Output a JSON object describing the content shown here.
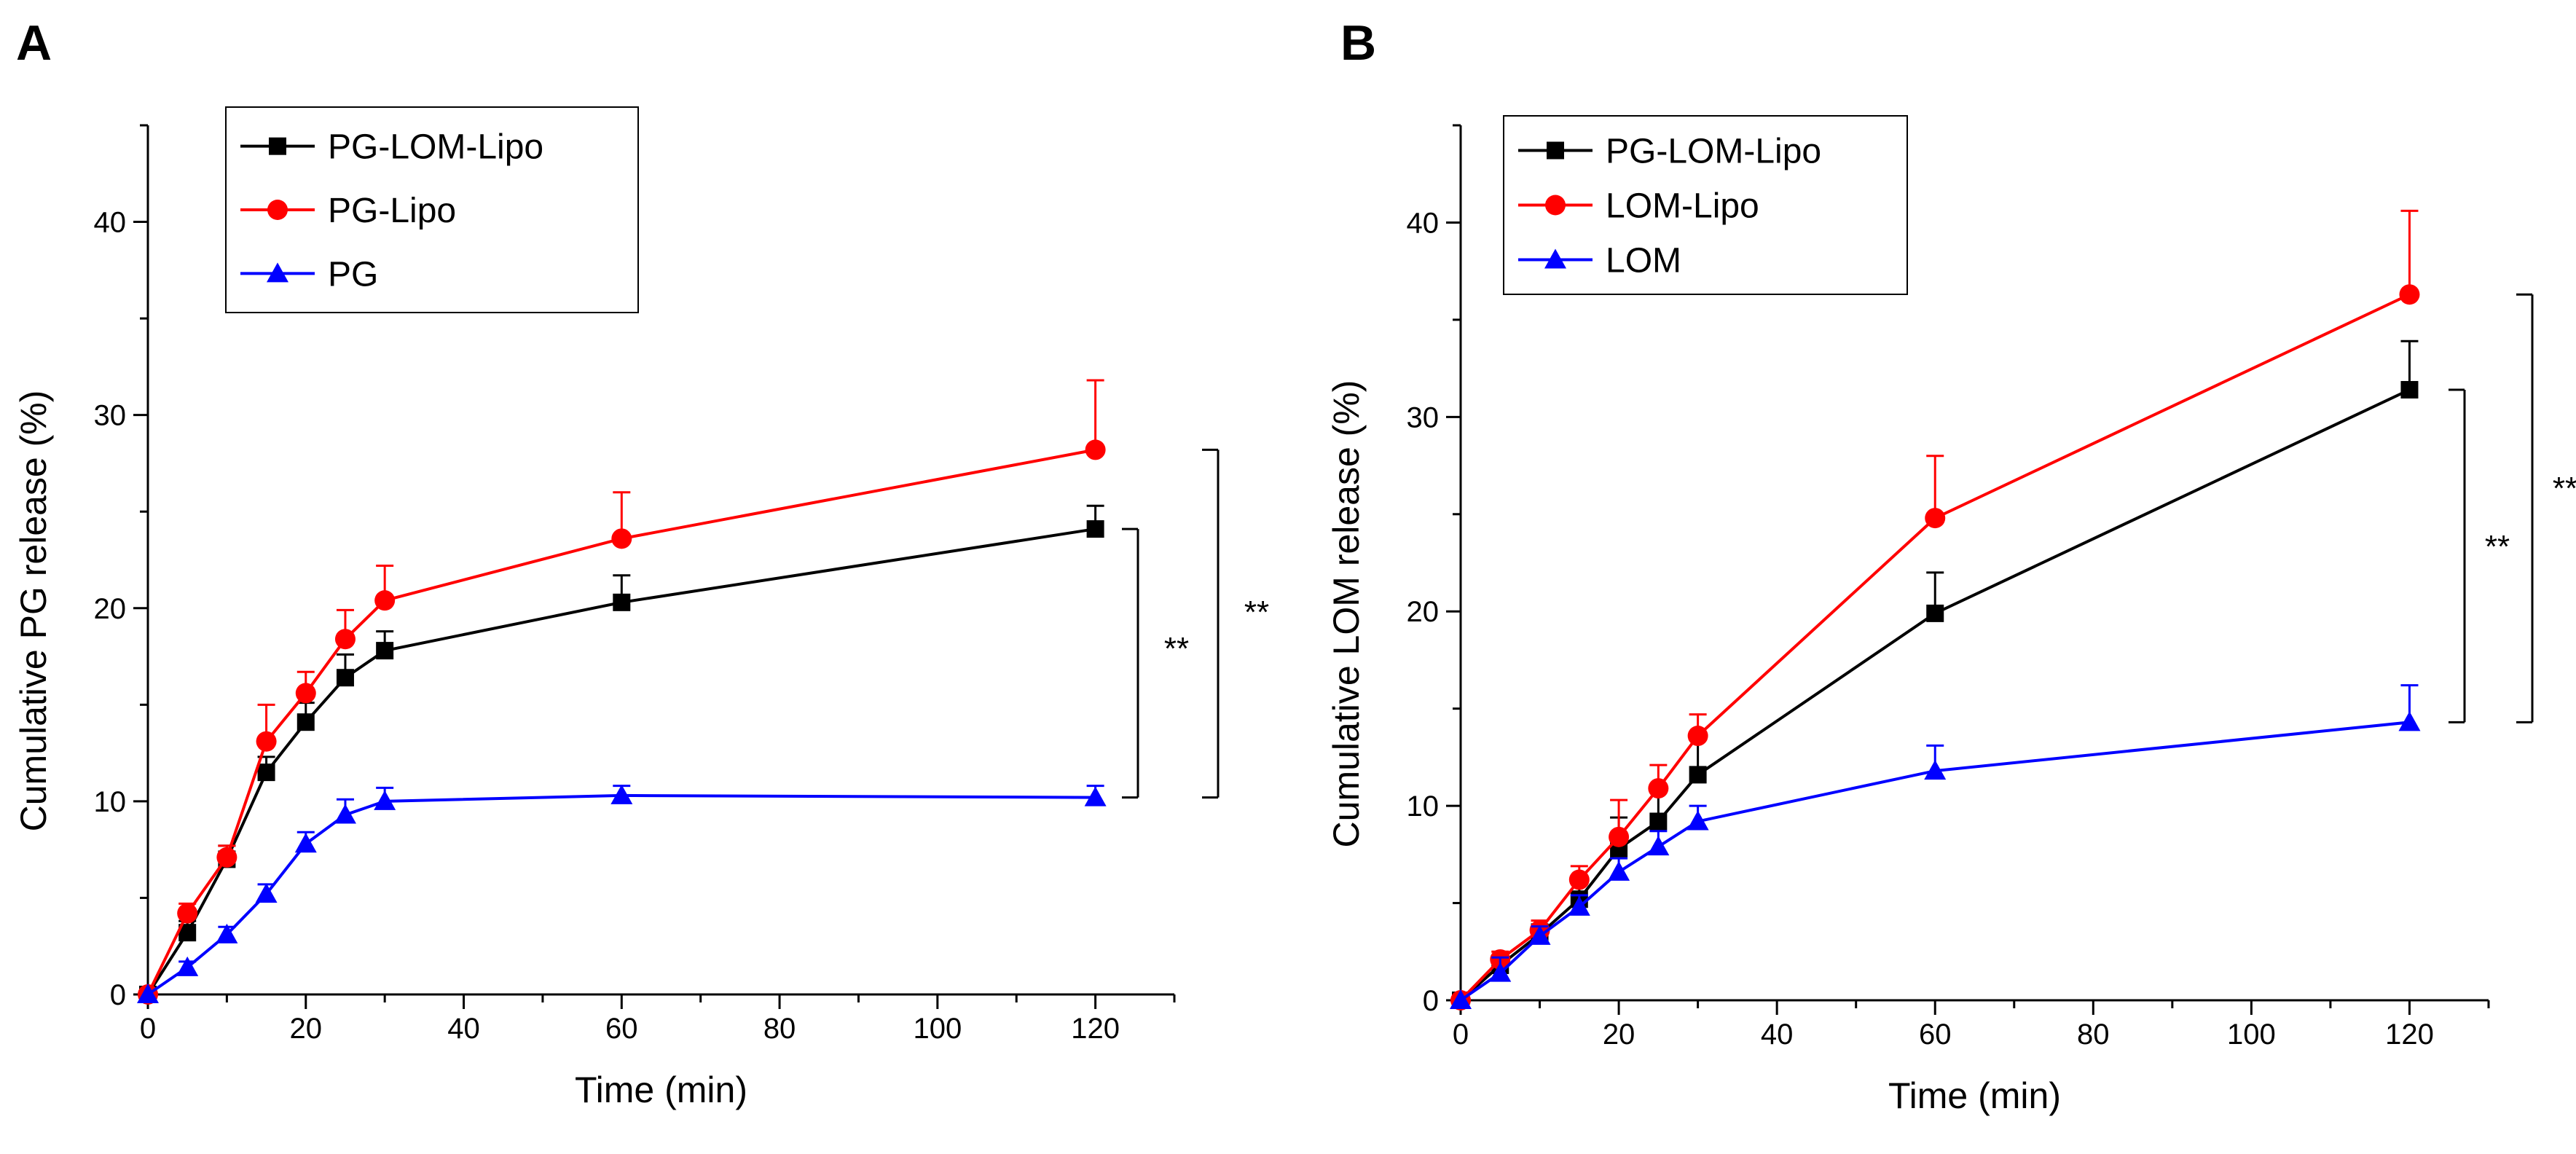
{
  "chart_data": [
    {
      "type": "line",
      "panel_label": "A",
      "xlabel": "Time (min)",
      "ylabel": "Cumulative PG release (%)",
      "xlim": [
        0,
        130
      ],
      "ylim": [
        0,
        45
      ],
      "xticks": [
        0,
        20,
        40,
        60,
        80,
        100,
        120
      ],
      "yticks": [
        0,
        10,
        20,
        30,
        40
      ],
      "legend_position": "top-left",
      "series": [
        {
          "name": "PG-LOM-Lipo",
          "color": "#000000",
          "marker": "square",
          "x": [
            0,
            5,
            10,
            15,
            20,
            25,
            30,
            60,
            120
          ],
          "y": [
            0,
            3.2,
            7.0,
            11.5,
            14.1,
            16.4,
            17.8,
            20.3,
            24.1
          ],
          "err": [
            0,
            0.6,
            0.7,
            0.8,
            1.0,
            1.2,
            1.0,
            1.4,
            1.2
          ]
        },
        {
          "name": "PG-Lipo",
          "color": "#ff0000",
          "marker": "circle",
          "x": [
            0,
            5,
            10,
            15,
            20,
            25,
            30,
            60,
            120
          ],
          "y": [
            0,
            4.2,
            7.1,
            13.1,
            15.6,
            18.4,
            20.4,
            23.6,
            28.2
          ],
          "err": [
            0,
            0.5,
            0.6,
            1.9,
            1.1,
            1.5,
            1.8,
            2.4,
            3.6
          ]
        },
        {
          "name": "PG",
          "color": "#0000ff",
          "marker": "triangle",
          "x": [
            0,
            5,
            10,
            15,
            20,
            25,
            30,
            60,
            120
          ],
          "y": [
            0,
            1.4,
            3.1,
            5.2,
            7.8,
            9.3,
            10.0,
            10.3,
            10.2
          ],
          "err": [
            0,
            0.3,
            0.4,
            0.5,
            0.6,
            0.8,
            0.7,
            0.5,
            0.6
          ]
        }
      ],
      "significance": [
        {
          "label": "**",
          "y_top": 24.1,
          "y_bottom": 10.2,
          "x": 128
        },
        {
          "label": "**",
          "y_top": 28.2,
          "y_bottom": 10.2,
          "x": 137
        }
      ]
    },
    {
      "type": "line",
      "panel_label": "B",
      "xlabel": "Time (min)",
      "ylabel": "Cumulative LOM release (%)",
      "xlim": [
        0,
        130
      ],
      "ylim": [
        0,
        45
      ],
      "xticks": [
        0,
        20,
        40,
        60,
        80,
        100,
        120
      ],
      "yticks": [
        0,
        10,
        20,
        30,
        40
      ],
      "legend_position": "top-left",
      "series": [
        {
          "name": "PG-LOM-Lipo",
          "color": "#000000",
          "marker": "square",
          "x": [
            0,
            5,
            10,
            15,
            20,
            25,
            30,
            60,
            120
          ],
          "y": [
            0,
            1.8,
            3.4,
            5.2,
            7.8,
            9.2,
            11.6,
            19.9,
            31.4
          ],
          "err": [
            0,
            0.4,
            0.5,
            0.8,
            1.6,
            1.6,
            1.9,
            2.1,
            2.5
          ]
        },
        {
          "name": "LOM-Lipo",
          "color": "#ff0000",
          "marker": "circle",
          "x": [
            0,
            5,
            10,
            15,
            20,
            25,
            30,
            60,
            120
          ],
          "y": [
            0,
            2.1,
            3.6,
            6.2,
            8.4,
            10.9,
            13.6,
            24.8,
            36.3
          ],
          "err": [
            0,
            0.4,
            0.5,
            0.7,
            1.9,
            1.2,
            1.1,
            3.2,
            4.3
          ]
        },
        {
          "name": "LOM",
          "color": "#0000ff",
          "marker": "triangle",
          "x": [
            0,
            5,
            10,
            15,
            20,
            25,
            30,
            60,
            120
          ],
          "y": [
            0,
            1.4,
            3.3,
            4.8,
            6.6,
            7.9,
            9.2,
            11.8,
            14.3
          ],
          "err": [
            0,
            0.8,
            0.5,
            0.6,
            0.7,
            0.8,
            0.8,
            1.3,
            1.9
          ]
        }
      ],
      "significance": [
        {
          "label": "**",
          "y_top": 31.4,
          "y_bottom": 14.3,
          "x": 127
        },
        {
          "label": "**",
          "y_top": 36.3,
          "y_bottom": 14.3,
          "x": 137
        }
      ]
    }
  ]
}
